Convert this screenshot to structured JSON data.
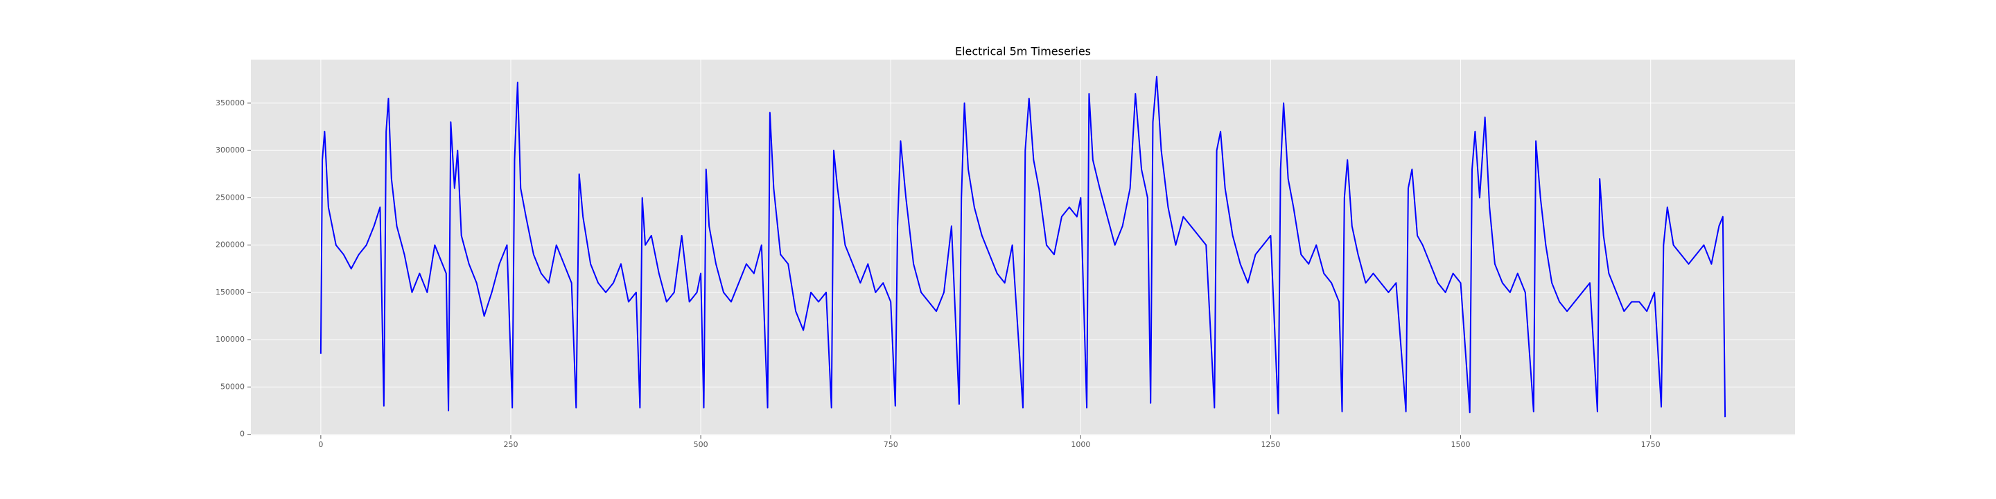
{
  "chart_data": {
    "type": "line",
    "title": "Electrical 5m Timeseries",
    "color": "#0000ff",
    "grid": true,
    "xlim": [
      -92,
      1940
    ],
    "ylim": [
      -1000,
      396000
    ],
    "xticks": [
      0,
      250,
      500,
      750,
      1000,
      1250,
      1500,
      1750
    ],
    "yticks": [
      0,
      50000,
      100000,
      150000,
      200000,
      250000,
      300000,
      350000
    ],
    "x": [
      0,
      2,
      5,
      10,
      15,
      20,
      30,
      40,
      50,
      60,
      70,
      78,
      83,
      86,
      89,
      93,
      100,
      110,
      120,
      130,
      140,
      150,
      160,
      165,
      168,
      171,
      176,
      180,
      185,
      195,
      205,
      215,
      225,
      235,
      245,
      252,
      255,
      259,
      263,
      270,
      280,
      290,
      300,
      310,
      320,
      330,
      336,
      340,
      345,
      355,
      365,
      375,
      385,
      395,
      405,
      415,
      420,
      423,
      427,
      435,
      445,
      455,
      465,
      475,
      485,
      495,
      500,
      504,
      507,
      511,
      520,
      530,
      540,
      550,
      560,
      570,
      580,
      588,
      591,
      596,
      605,
      615,
      625,
      635,
      645,
      655,
      665,
      672,
      675,
      680,
      690,
      700,
      710,
      720,
      730,
      740,
      750,
      756,
      759,
      763,
      770,
      780,
      790,
      800,
      810,
      820,
      830,
      840,
      843,
      847,
      852,
      860,
      870,
      880,
      890,
      900,
      910,
      924,
      927,
      932,
      938,
      945,
      955,
      965,
      975,
      985,
      995,
      1000,
      1008,
      1011,
      1016,
      1025,
      1035,
      1045,
      1055,
      1065,
      1072,
      1080,
      1088,
      1092,
      1095,
      1100,
      1106,
      1115,
      1125,
      1135,
      1145,
      1155,
      1165,
      1176,
      1179,
      1184,
      1190,
      1200,
      1210,
      1220,
      1230,
      1240,
      1250,
      1260,
      1263,
      1267,
      1273,
      1280,
      1290,
      1300,
      1310,
      1320,
      1330,
      1340,
      1344,
      1347,
      1351,
      1357,
      1365,
      1375,
      1385,
      1395,
      1405,
      1415,
      1428,
      1431,
      1436,
      1443,
      1450,
      1460,
      1470,
      1480,
      1490,
      1500,
      1512,
      1515,
      1519,
      1525,
      1532,
      1538,
      1545,
      1555,
      1565,
      1575,
      1585,
      1596,
      1599,
      1605,
      1612,
      1620,
      1630,
      1640,
      1650,
      1660,
      1670,
      1680,
      1683,
      1688,
      1695,
      1705,
      1715,
      1725,
      1735,
      1745,
      1755,
      1764,
      1767,
      1772,
      1780,
      1790,
      1800,
      1810,
      1820,
      1830,
      1840,
      1845,
      1848
    ],
    "values": [
      85000,
      290000,
      320000,
      240000,
      220000,
      200000,
      190000,
      175000,
      190000,
      200000,
      220000,
      240000,
      30000,
      320000,
      355000,
      270000,
      220000,
      190000,
      150000,
      170000,
      150000,
      200000,
      180000,
      170000,
      25000,
      330000,
      260000,
      300000,
      210000,
      180000,
      160000,
      125000,
      150000,
      180000,
      200000,
      28000,
      290000,
      372000,
      260000,
      230000,
      190000,
      170000,
      160000,
      200000,
      180000,
      160000,
      28000,
      275000,
      230000,
      180000,
      160000,
      150000,
      160000,
      180000,
      140000,
      150000,
      28000,
      250000,
      200000,
      210000,
      170000,
      140000,
      150000,
      210000,
      140000,
      150000,
      170000,
      28000,
      280000,
      220000,
      180000,
      150000,
      140000,
      160000,
      180000,
      170000,
      200000,
      28000,
      340000,
      260000,
      190000,
      180000,
      130000,
      110000,
      150000,
      140000,
      150000,
      28000,
      300000,
      260000,
      200000,
      180000,
      160000,
      180000,
      150000,
      160000,
      140000,
      30000,
      220000,
      310000,
      250000,
      180000,
      150000,
      140000,
      130000,
      150000,
      220000,
      32000,
      250000,
      350000,
      280000,
      240000,
      210000,
      190000,
      170000,
      160000,
      200000,
      28000,
      300000,
      355000,
      290000,
      260000,
      200000,
      190000,
      230000,
      240000,
      230000,
      250000,
      28000,
      360000,
      290000,
      260000,
      230000,
      200000,
      220000,
      260000,
      360000,
      280000,
      250000,
      33000,
      330000,
      378000,
      300000,
      240000,
      200000,
      230000,
      220000,
      210000,
      200000,
      28000,
      300000,
      320000,
      260000,
      210000,
      180000,
      160000,
      190000,
      200000,
      210000,
      22000,
      280000,
      350000,
      270000,
      240000,
      190000,
      180000,
      200000,
      170000,
      160000,
      140000,
      24000,
      250000,
      290000,
      220000,
      190000,
      160000,
      170000,
      160000,
      150000,
      160000,
      24000,
      260000,
      280000,
      210000,
      200000,
      180000,
      160000,
      150000,
      170000,
      160000,
      23000,
      280000,
      320000,
      250000,
      335000,
      240000,
      180000,
      160000,
      150000,
      170000,
      150000,
      24000,
      310000,
      250000,
      200000,
      160000,
      140000,
      130000,
      140000,
      150000,
      160000,
      24000,
      270000,
      210000,
      170000,
      150000,
      130000,
      140000,
      140000,
      130000,
      150000,
      29000,
      200000,
      240000,
      200000,
      190000,
      180000,
      190000,
      200000,
      180000,
      220000,
      230000,
      18000
    ]
  }
}
